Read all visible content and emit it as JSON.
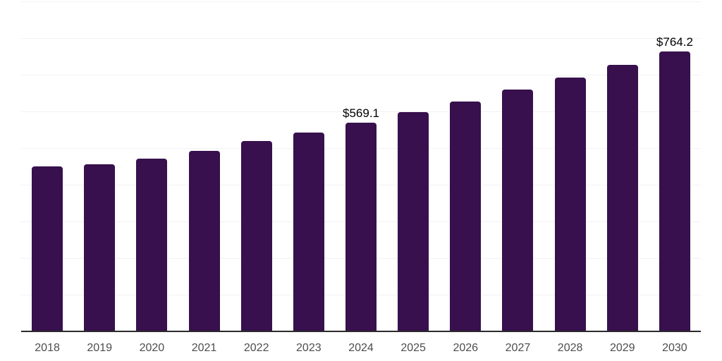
{
  "chart_data": {
    "type": "bar",
    "title": "",
    "xlabel": "",
    "ylabel": "",
    "categories": [
      "2018",
      "2019",
      "2020",
      "2021",
      "2022",
      "2023",
      "2024",
      "2025",
      "2026",
      "2027",
      "2028",
      "2029",
      "2030"
    ],
    "values": [
      450.0,
      455.4,
      471.5,
      492.6,
      519.6,
      541.9,
      569.1,
      597.7,
      627.8,
      659.3,
      692.5,
      727.3,
      764.2
    ],
    "labeled_points": [
      {
        "category": "2024",
        "label": "$569.1"
      },
      {
        "category": "2030",
        "label": "$764.2"
      }
    ],
    "currency_prefix": "$",
    "ylim": [
      0,
      900
    ],
    "gridline_step": 100,
    "grid": true,
    "legend_position": "none",
    "y_axis_labels_visible": false
  },
  "colors": {
    "bar": "#37104D",
    "gridline": "#f2f2f2",
    "axis_line": "#2b2b2b",
    "x_tick_label": "#4d4d4d",
    "data_label": "#000000",
    "background": "#ffffff"
  }
}
